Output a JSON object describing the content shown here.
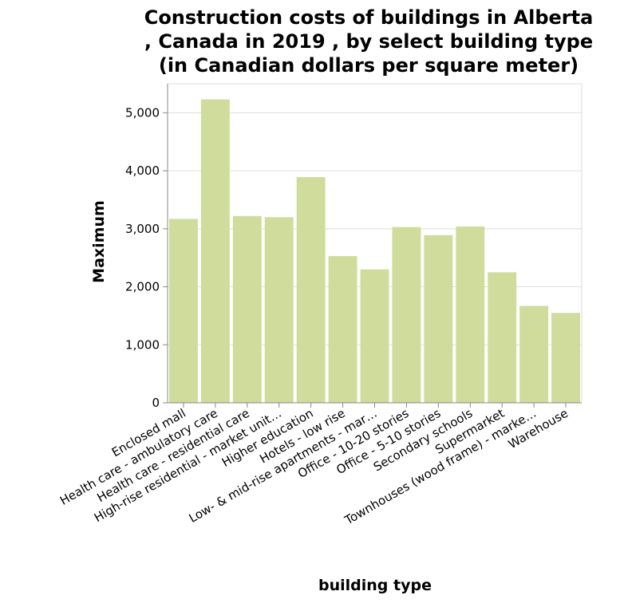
{
  "chart_data": {
    "type": "bar",
    "title_lines": [
      "Construction costs of buildings in Alberta",
      ", Canada in 2019 , by select building type",
      "(in Canadian dollars per square meter)"
    ],
    "xlabel": "building type",
    "ylabel": "Maximum",
    "ylim": [
      0,
      5500
    ],
    "yticks": [
      0,
      1000,
      2000,
      3000,
      4000,
      5000
    ],
    "ytick_labels": [
      "0",
      "1,000",
      "2,000",
      "3,000",
      "4,000",
      "5,000"
    ],
    "grid": true,
    "categories": [
      "Enclosed mall",
      "Health care - ambulatory care",
      "Health care - residential care",
      "High-rise residential - market unit…",
      "Higher education",
      "Hotels - low rise",
      "Low- & mid-rise apartments - mar…",
      "Office - 10-20 stories",
      "Office - 5-10 stories",
      "Secondary schools",
      "Supermarket",
      "Townhouses (wood frame) - marke…",
      "Warehouse"
    ],
    "values": [
      3170,
      5230,
      3220,
      3200,
      3890,
      2530,
      2300,
      3030,
      2890,
      3040,
      2250,
      1670,
      1550
    ],
    "colors": {
      "bar": "#d0dc9b",
      "grid": "#dddddd",
      "axis": "#888888"
    }
  }
}
